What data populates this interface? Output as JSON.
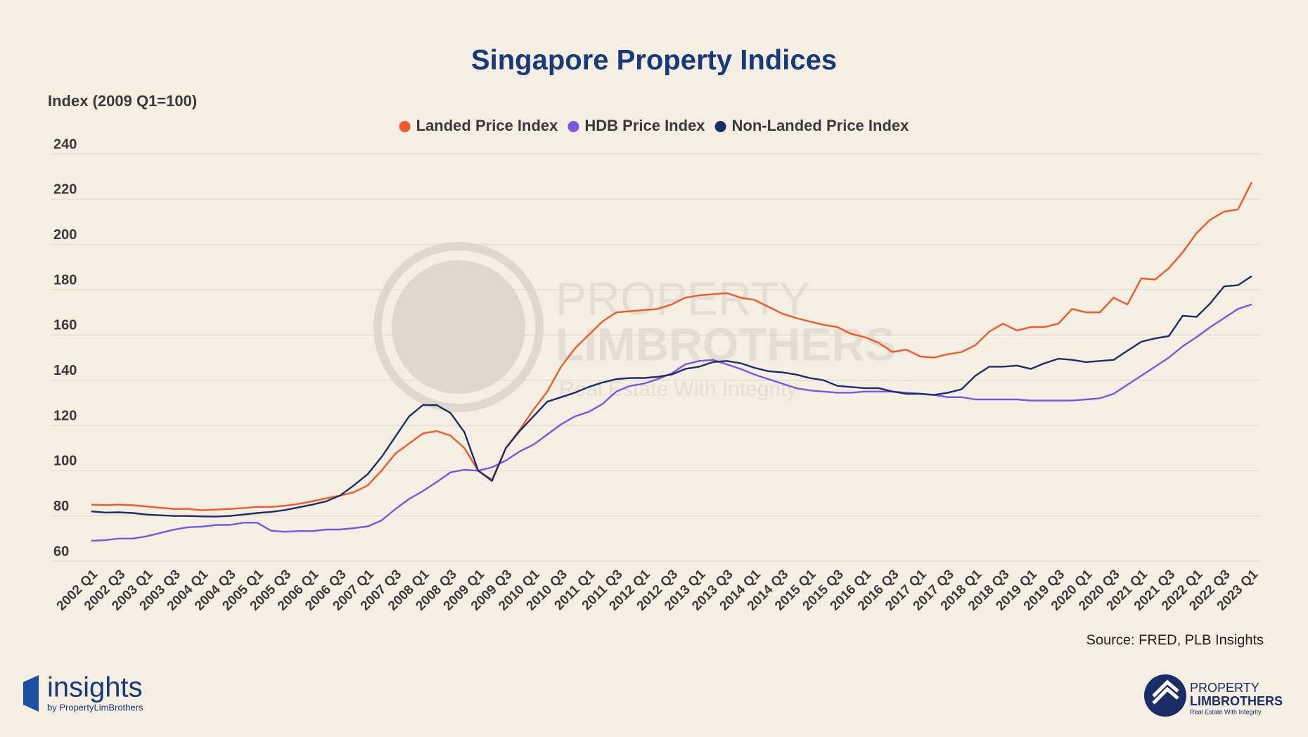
{
  "chart_data": {
    "type": "line",
    "title": "Singapore Property Indices",
    "y_axis_label": "Index (2009 Q1=100)",
    "source": "Source: FRED, PLB Insights",
    "categories": [
      "2002 Q1",
      null,
      "2002 Q3",
      null,
      "2003 Q1",
      null,
      "2003 Q3",
      null,
      "2004 Q1",
      null,
      "2004 Q3",
      null,
      "2005 Q1",
      null,
      "2005 Q3",
      null,
      "2006 Q1",
      null,
      "2006 Q3",
      null,
      "2007 Q1",
      null,
      "2007 Q3",
      null,
      "2008 Q1",
      null,
      "2008 Q3",
      null,
      "2009 Q1",
      null,
      "2009 Q3",
      null,
      "2010 Q1",
      null,
      "2010 Q3",
      null,
      "2011 Q1",
      null,
      "2011 Q3",
      null,
      "2012 Q1",
      null,
      "2012 Q3",
      null,
      "2013 Q1",
      null,
      "2013 Q3",
      null,
      "2014 Q1",
      null,
      "2014 Q3",
      null,
      "2015 Q1",
      null,
      "2015 Q3",
      null,
      "2016 Q1",
      null,
      "2016 Q3",
      null,
      "2017 Q1",
      null,
      "2017 Q3",
      null,
      "2018 Q1",
      null,
      "2018 Q3",
      null,
      "2019 Q1",
      null,
      "2019 Q3",
      null,
      "2020 Q1",
      null,
      "2020 Q3",
      null,
      "2021 Q1",
      null,
      "2021 Q3",
      null,
      "2022 Q1",
      null,
      "2022 Q3",
      null,
      "2023 Q1"
    ],
    "series": [
      {
        "name": "Landed Price Index",
        "color": "#f05a28",
        "values": [
          85,
          84.8,
          85,
          84.7,
          84.2,
          83.6,
          83.1,
          83.1,
          82.5,
          82.8,
          83.1,
          83.5,
          84,
          84,
          84.5,
          85.3,
          86.5,
          87.8,
          89,
          90.5,
          93.5,
          100,
          107.5,
          112,
          116.5,
          117.5,
          115.5,
          110,
          100,
          96,
          110,
          118,
          127,
          135,
          146,
          154,
          160,
          166,
          170,
          170.5,
          171,
          171.5,
          173.5,
          176.5,
          177.5,
          178,
          178.5,
          176.5,
          175.5,
          172.5,
          169.5,
          167.5,
          166,
          164.5,
          163.5,
          160.5,
          159,
          156.5,
          152.5,
          153.5,
          150.5,
          150,
          151.5,
          152.5,
          155.5,
          161.5,
          165,
          162,
          163.5,
          163.5,
          165,
          171.5,
          170,
          170,
          176.5,
          173.5,
          185,
          184.5,
          189.5,
          196.5,
          205,
          211,
          214.5,
          215.5,
          227.5
        ]
      },
      {
        "name": "HDB Price Index",
        "color": "#7b55e0",
        "values": [
          69,
          69.3,
          70,
          70,
          71,
          72.5,
          74,
          75,
          75.3,
          76,
          76,
          77,
          77,
          73.5,
          73,
          73.3,
          73.3,
          74,
          74,
          74.6,
          75.4,
          78,
          83,
          87.5,
          91,
          95,
          99.3,
          100.4,
          100,
          101.5,
          104.5,
          108.5,
          111.5,
          116,
          120.5,
          124,
          126,
          129.5,
          135,
          137.5,
          138.5,
          140.5,
          143,
          147,
          148.5,
          149,
          147,
          145,
          142.5,
          140.5,
          138.5,
          136.5,
          135.5,
          135,
          134.5,
          134.5,
          135,
          135,
          135,
          134.5,
          134,
          133.5,
          132.5,
          132.5,
          131.5,
          131.5,
          131.5,
          131.5,
          131,
          131,
          131,
          131,
          131.5,
          132,
          134,
          138,
          142,
          146,
          150,
          155,
          159,
          163.5,
          167.5,
          171.5,
          173.5
        ]
      },
      {
        "name": "Non-Landed Price Index",
        "color": "#1b2d66",
        "values": [
          82,
          81.5,
          81.6,
          81.3,
          80.6,
          80.3,
          80,
          80,
          79.8,
          79.7,
          80,
          80.6,
          81.3,
          81.8,
          82.6,
          83.8,
          85,
          86.5,
          89,
          93.5,
          98.5,
          106,
          115,
          124,
          129,
          129,
          125.5,
          117,
          100,
          95.5,
          110,
          117.5,
          124,
          130.5,
          132.5,
          134.5,
          137,
          139,
          140.5,
          141,
          141,
          141.5,
          142.5,
          145,
          146,
          148,
          148.5,
          147.5,
          145.5,
          144,
          143.5,
          142.5,
          141,
          140,
          137.5,
          137,
          136.5,
          136.5,
          135,
          134,
          134,
          133.5,
          134.5,
          136,
          142,
          146,
          146,
          146.5,
          145,
          147.5,
          149.5,
          149,
          148,
          148.5,
          149,
          153,
          157,
          158.5,
          159.5,
          168.5,
          168,
          174,
          181.5,
          182,
          186
        ]
      }
    ],
    "ylim": [
      60,
      240
    ],
    "yticks": [
      60,
      80,
      100,
      120,
      140,
      160,
      180,
      200,
      220,
      240
    ],
    "grid": true,
    "legend": "top"
  },
  "watermark": {
    "line1": "PROPERTY",
    "line2": "LIMBROTHERS",
    "tagline": "Real Estate With Integrity"
  },
  "footer": {
    "left_logo": "insights",
    "left_sub": "by PropertyLimBrothers",
    "right_line1": "PROPERTY",
    "right_line2": "LIMBROTHERS",
    "right_sub": "Real Estate With Integrity"
  }
}
